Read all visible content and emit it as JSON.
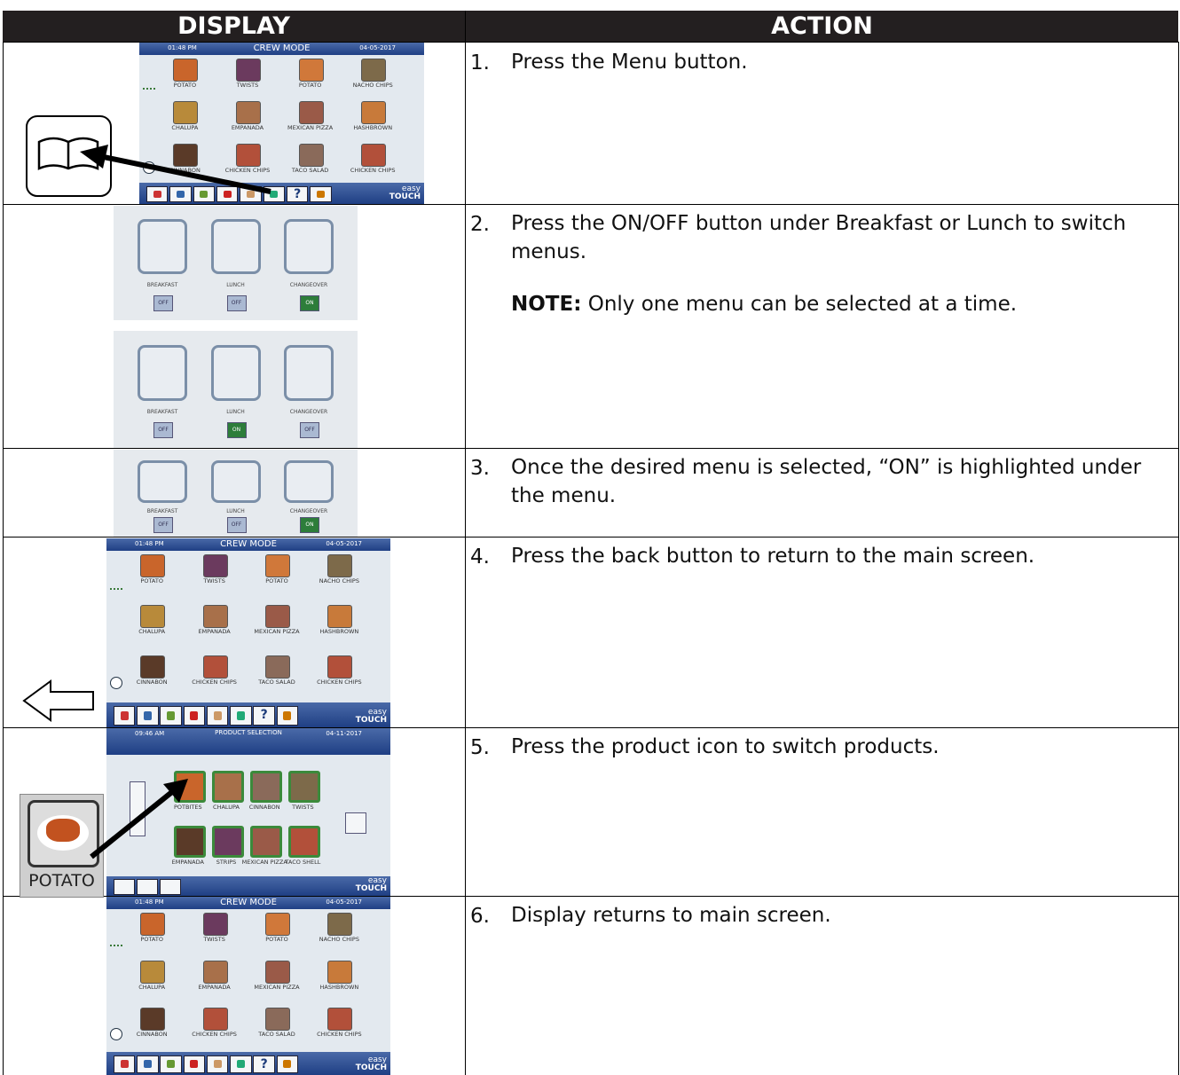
{
  "header": {
    "display": "DISPLAY",
    "action": "ACTION"
  },
  "steps": [
    {
      "number": "1.",
      "text": "Press the Menu button."
    },
    {
      "number": "2.",
      "text": "Press the ON/OFF button under Breakfast or Lunch to switch menus.",
      "note_label": "NOTE:",
      "note": "Only one menu can be selected at a time."
    },
    {
      "number": "3.",
      "text": "Once the desired menu is selected, “ON” is highlighted under the menu."
    },
    {
      "number": "4.",
      "text": "Press the back button to return to the main screen."
    },
    {
      "number": "5.",
      "text": "Press the product icon to switch products."
    },
    {
      "number": "6.",
      "text": "Display returns to main screen."
    }
  ],
  "screens": {
    "brand": [
      "easy",
      "TOUCH"
    ],
    "help": "?",
    "crew": {
      "time": "01:48 PM",
      "title": "CREW MODE",
      "date": "04-05-2017",
      "items": [
        "POTATO",
        "TWISTS",
        "POTATO",
        "NACHO CHIPS",
        "CHALUPA",
        "EMPANADA",
        "MEXICAN PIZZA",
        "HASHBROWN",
        "CINNABON",
        "CHICKEN CHIPS",
        "TACO SALAD",
        "CHICKEN CHIPS"
      ]
    },
    "menu": {
      "labels": [
        "BREAKFAST",
        "LUNCH",
        "CHANGEOVER"
      ],
      "off": "OFF",
      "on": "ON",
      "variants": [
        [
          false,
          false,
          true
        ],
        [
          false,
          true,
          false
        ],
        [
          false,
          false,
          true
        ]
      ]
    },
    "product": {
      "time": "09:46 AM",
      "title": "PRODUCT SELECTION",
      "date": "04-11-2017",
      "items": [
        "POTBITES",
        "CHALUPA",
        "CINNABON",
        "TWISTS",
        "EMPANADA",
        "STRIPS",
        "MEXICAN PIZZA",
        "TACO SHELL"
      ],
      "callout": "POTATO"
    }
  }
}
